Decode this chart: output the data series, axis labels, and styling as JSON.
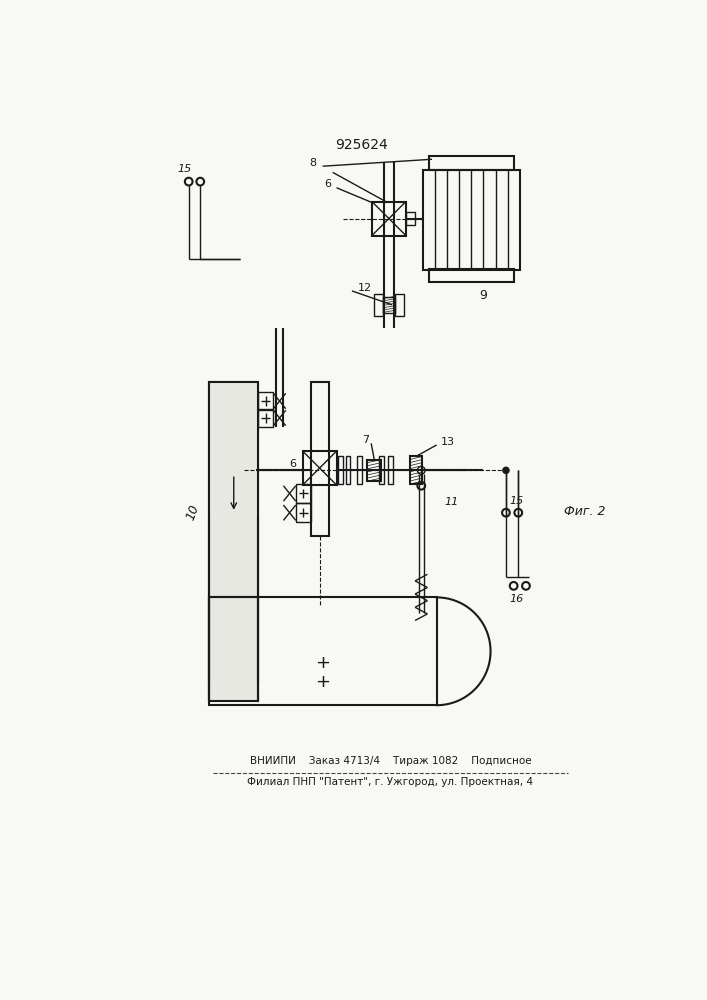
{
  "title": "925624",
  "footer_line1": "ВНИИПИ    Заказ 4713/4    Тираж 1082    Подписное",
  "footer_line2": "Филиал ПНП \"Патент\", г. Ужгород, ул. Проектная, 4",
  "fig_label": "Фиг. 2",
  "bg_color": "#f8f8f5",
  "line_color": "#1a1a1a"
}
